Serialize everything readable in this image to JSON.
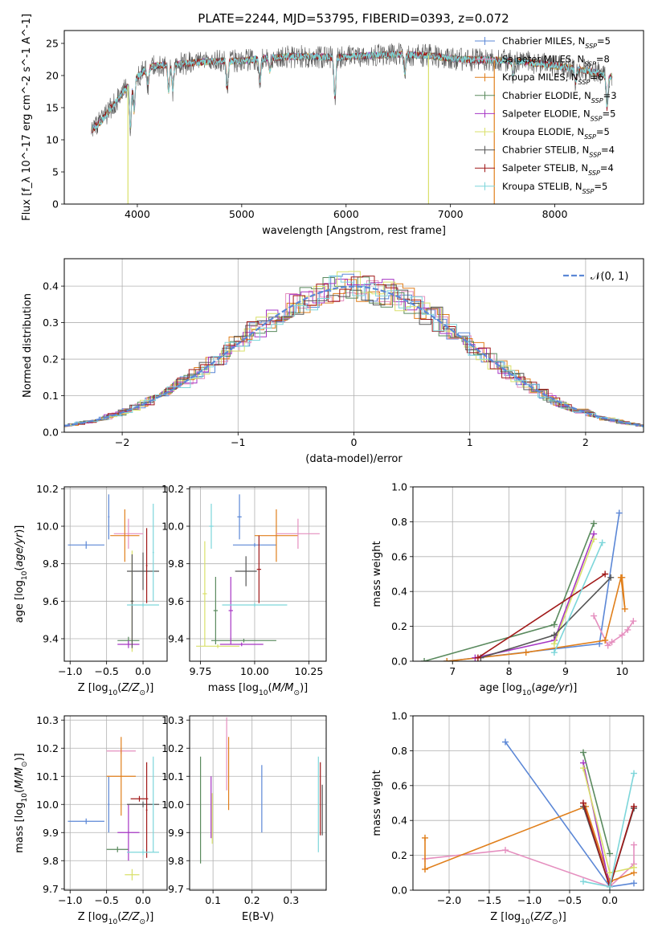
{
  "figure_title": "PLATE=2244, MJD=53795, FIBERID=0393, z=0.072",
  "colors": {
    "chabrier_miles": "#5b87d6",
    "salpeter_miles": "#e58fbf",
    "kroupa_miles": "#e07f1b",
    "chabrier_elodie": "#5a8a5e",
    "salpeter_elodie": "#a636c4",
    "kroupa_elodie": "#d9e06a",
    "chabrier_stelib": "#555555",
    "salpeter_stelib": "#a01818",
    "kroupa_stelib": "#7dd6da",
    "gaussian": "#5b87d6",
    "grid": "#b0b0b0"
  },
  "chart_data": [
    {
      "id": "spectrum",
      "type": "line",
      "title": "PLATE=2244, MJD=53795, FIBERID=0393, z=0.072",
      "xlabel": "wavelength [Angstrom, rest frame]",
      "ylabel": "Flux [f_λ 10^-17 erg cm^-2 s^-1 A^-1]",
      "xlim": [
        3300,
        8850
      ],
      "ylim": [
        0,
        27
      ],
      "xticks": [
        4000,
        5000,
        6000,
        7000,
        8000
      ],
      "yticks": [
        0,
        5,
        10,
        15,
        20,
        25
      ],
      "grid": false,
      "legend_position": "top-right",
      "legend": [
        {
          "label": "Chabrier MILES, N",
          "sub": "SSP",
          "tail": "=5"
        },
        {
          "label": "Salpeter MILES, N",
          "sub": "SSP",
          "tail": "=8"
        },
        {
          "label": "Kroupa MILES, N",
          "sub": "SSP",
          "tail": "=6"
        },
        {
          "label": "Chabrier ELODIE, N",
          "sub": "SSP",
          "tail": "=3"
        },
        {
          "label": "Salpeter ELODIE, N",
          "sub": "SSP",
          "tail": "=5"
        },
        {
          "label": "Kroupa ELODIE, N",
          "sub": "SSP",
          "tail": "=5"
        },
        {
          "label": "Chabrier STELIB, N",
          "sub": "SSP",
          "tail": "=4"
        },
        {
          "label": "Salpeter STELIB, N",
          "sub": "SSP",
          "tail": "=4"
        },
        {
          "label": "Kroupa STELIB, N",
          "sub": "SSP",
          "tail": "=5"
        }
      ],
      "continuum": [
        [
          3560,
          11.5
        ],
        [
          3650,
          12.8
        ],
        [
          3750,
          15
        ],
        [
          3850,
          17
        ],
        [
          3950,
          19.2
        ],
        [
          4050,
          20.5
        ],
        [
          4150,
          21.5
        ],
        [
          4400,
          21.8
        ],
        [
          4700,
          22.2
        ],
        [
          5000,
          22.3
        ],
        [
          5300,
          22.8
        ],
        [
          5600,
          23
        ],
        [
          5900,
          22.8
        ],
        [
          6200,
          23.1
        ],
        [
          6500,
          23.3
        ],
        [
          6800,
          23.1
        ],
        [
          7100,
          22.5
        ],
        [
          7400,
          22.4
        ],
        [
          7700,
          22.2
        ],
        [
          8000,
          21.5
        ],
        [
          8300,
          20.8
        ],
        [
          8550,
          19.8
        ]
      ],
      "absorption": [
        [
          3934,
          7
        ],
        [
          3969,
          5
        ],
        [
          4101,
          2.5
        ],
        [
          4300,
          4
        ],
        [
          4340,
          4
        ],
        [
          4861,
          4
        ],
        [
          5175,
          3.5
        ],
        [
          5270,
          2
        ],
        [
          5893,
          6
        ],
        [
          6563,
          3
        ],
        [
          7600,
          2
        ],
        [
          8200,
          2
        ],
        [
          8500,
          5
        ]
      ],
      "spikes": [
        [
          3910,
          0
        ],
        [
          6790,
          0
        ],
        [
          7420,
          0
        ]
      ]
    },
    {
      "id": "residuals",
      "type": "bar",
      "xlabel": "(data-model)/error",
      "ylabel": "Normed distribution",
      "xlim": [
        -2.5,
        2.5
      ],
      "ylim": [
        0,
        0.475
      ],
      "xticks": [
        -2,
        -1,
        0,
        1,
        2
      ],
      "yticks": [
        0.0,
        0.1,
        0.2,
        0.3,
        0.4
      ],
      "grid": true,
      "legend_position": "top-right",
      "legend": [
        "𝒩(0, 1)"
      ],
      "bin_width": 0.1,
      "gaussian": {
        "mean": 0,
        "sigma": 1
      }
    },
    {
      "id": "z_age",
      "type": "scatter",
      "xlabel": "Z [log10(Z/Z☉)]",
      "ylabel": "age [log10(age/yr)]",
      "xlim": [
        -1.08,
        0.33
      ],
      "ylim": [
        9.28,
        10.21
      ],
      "xticks": [
        -1.0,
        -0.5,
        0.0
      ],
      "yticks": [
        9.4,
        9.6,
        9.8,
        10.0,
        10.2
      ],
      "grid": true,
      "points": [
        {
          "model": "chabrier_miles",
          "x": -0.78,
          "y": 9.9,
          "xerr": 0.25,
          "yerr": 0.02
        },
        {
          "model": "chabrier_miles",
          "x": -0.47,
          "y": 10.05,
          "xerr": 0.01,
          "yerr": 0.12
        },
        {
          "model": "salpeter_miles",
          "x": -0.2,
          "y": 9.96,
          "xerr": 0.2,
          "yerr": 0.08
        },
        {
          "model": "kroupa_miles",
          "x": -0.25,
          "y": 9.95,
          "xerr": 0.2,
          "yerr": 0.14
        },
        {
          "model": "chabrier_elodie",
          "x": -0.2,
          "y": 9.39,
          "xerr": 0.15,
          "yerr": 0.02
        },
        {
          "model": "salpeter_elodie",
          "x": -0.2,
          "y": 9.37,
          "xerr": 0.15,
          "yerr": 0.02
        },
        {
          "model": "kroupa_elodie",
          "x": -0.15,
          "y": 9.6,
          "xerr": 0.02,
          "yerr": 0.27
        },
        {
          "model": "chabrier_stelib",
          "x": -0.15,
          "y": 9.6,
          "xerr": 0.02,
          "yerr": 0.25
        },
        {
          "model": "chabrier_stelib",
          "x": 0.0,
          "y": 9.76,
          "xerr": 0.22,
          "yerr": 0.1
        },
        {
          "model": "salpeter_stelib",
          "x": 0.05,
          "y": 9.79,
          "xerr": 0.01,
          "yerr": 0.2
        },
        {
          "model": "kroupa_stelib",
          "x": 0.0,
          "y": 9.58,
          "xerr": 0.22,
          "yerr": 0.01
        },
        {
          "model": "kroupa_stelib",
          "x": 0.14,
          "y": 9.86,
          "xerr": 0.01,
          "yerr": 0.26
        }
      ]
    },
    {
      "id": "mass_age",
      "type": "scatter",
      "xlabel": "mass [log10(M/M☉)]",
      "ylabel": "",
      "xlim": [
        9.7,
        10.33
      ],
      "ylim": [
        9.28,
        10.21
      ],
      "xticks": [
        9.75,
        10.0,
        10.25
      ],
      "xticklabels": [
        "9.75",
        "10.00",
        "10.25"
      ],
      "yticks": [
        9.4,
        9.6,
        9.8,
        10.0,
        10.2
      ],
      "grid": true,
      "points": [
        {
          "model": "chabrier_miles",
          "x": 10.0,
          "y": 9.9,
          "xerr": 0.1,
          "yerr": 0.01
        },
        {
          "model": "chabrier_miles",
          "x": 9.93,
          "y": 10.05,
          "xerr": 0.01,
          "yerr": 0.12
        },
        {
          "model": "kroupa_miles",
          "x": 10.1,
          "y": 9.95,
          "xerr": 0.1,
          "yerr": 0.14
        },
        {
          "model": "salpeter_miles",
          "x": 10.2,
          "y": 9.96,
          "xerr": 0.1,
          "yerr": 0.08
        },
        {
          "model": "kroupa_stelib",
          "x": 9.8,
          "y": 10.0,
          "xerr": 0.01,
          "yerr": 0.12
        },
        {
          "model": "kroupa_elodie",
          "x": 9.77,
          "y": 9.64,
          "xerr": 0.01,
          "yerr": 0.28
        },
        {
          "model": "kroupa_elodie",
          "x": 9.83,
          "y": 9.36,
          "xerr": 0.1,
          "yerr": 0.01
        },
        {
          "model": "chabrier_elodie",
          "x": 9.82,
          "y": 9.55,
          "xerr": 0.01,
          "yerr": 0.18
        },
        {
          "model": "chabrier_elodie",
          "x": 9.95,
          "y": 9.39,
          "xerr": 0.15,
          "yerr": 0.01
        },
        {
          "model": "salpeter_elodie",
          "x": 9.89,
          "y": 9.55,
          "xerr": 0.01,
          "yerr": 0.18
        },
        {
          "model": "salpeter_elodie",
          "x": 9.94,
          "y": 9.37,
          "xerr": 0.1,
          "yerr": 0.01
        },
        {
          "model": "chabrier_stelib",
          "x": 9.96,
          "y": 9.76,
          "xerr": 0.05,
          "yerr": 0.08
        },
        {
          "model": "salpeter_stelib",
          "x": 10.02,
          "y": 9.77,
          "xerr": 0.01,
          "yerr": 0.18
        },
        {
          "model": "kroupa_stelib",
          "x": 10.0,
          "y": 9.58,
          "xerr": 0.15,
          "yerr": 0.01
        }
      ]
    },
    {
      "id": "age_weight",
      "type": "line",
      "xlabel": "age [log10(age/yr)]",
      "ylabel": "mass weight",
      "xlim": [
        6.3,
        10.38
      ],
      "ylim": [
        0,
        1.0
      ],
      "xticks": [
        7,
        8,
        9,
        10
      ],
      "yticks": [
        0.0,
        0.2,
        0.4,
        0.6,
        0.8,
        1.0
      ],
      "grid": true,
      "series": [
        {
          "model": "chabrier_miles",
          "x": [
            6.9,
            9.6,
            9.95
          ],
          "y": [
            0.0,
            0.1,
            0.85
          ]
        },
        {
          "model": "salpeter_miles",
          "x": [
            9.5,
            9.75,
            9.82,
            10.0,
            10.1,
            10.2
          ],
          "y": [
            0.26,
            0.09,
            0.11,
            0.15,
            0.18,
            0.23
          ]
        },
        {
          "model": "kroupa_miles",
          "x": [
            6.9,
            8.3,
            9.7,
            9.98,
            10.05,
            10.0
          ],
          "y": [
            0.0,
            0.05,
            0.12,
            0.48,
            0.3,
            0.48
          ]
        },
        {
          "model": "chabrier_elodie",
          "x": [
            6.5,
            8.8,
            9.5
          ],
          "y": [
            0.0,
            0.21,
            0.79
          ]
        },
        {
          "model": "salpeter_elodie",
          "x": [
            7.4,
            8.8,
            9.5
          ],
          "y": [
            0.02,
            0.12,
            0.73
          ]
        },
        {
          "model": "kroupa_elodie",
          "x": [
            8.8,
            9.5
          ],
          "y": [
            0.1,
            0.7
          ]
        },
        {
          "model": "chabrier_stelib",
          "x": [
            7.5,
            8.8,
            9.8
          ],
          "y": [
            0.02,
            0.15,
            0.48
          ]
        },
        {
          "model": "salpeter_stelib",
          "x": [
            7.45,
            9.7
          ],
          "y": [
            0.02,
            0.5
          ]
        },
        {
          "model": "kroupa_stelib",
          "x": [
            8.8,
            9.65
          ],
          "y": [
            0.05,
            0.68
          ]
        }
      ]
    },
    {
      "id": "z_mass",
      "type": "scatter",
      "xlabel": "Z [log10(Z/Z☉)]",
      "ylabel": "mass [log10(M/M☉)]",
      "xlim": [
        -1.08,
        0.33
      ],
      "ylim": [
        9.695,
        10.315
      ],
      "xticks": [
        -1.0,
        -0.5,
        0.0
      ],
      "yticks": [
        9.7,
        9.8,
        9.9,
        10.0,
        10.1,
        10.2,
        10.3
      ],
      "grid": true,
      "points": [
        {
          "model": "chabrier_miles",
          "x": -0.78,
          "y": 9.94,
          "xerr": 0.25,
          "yerr": 0.01
        },
        {
          "model": "chabrier_miles",
          "x": -0.47,
          "y": 10.0,
          "xerr": 0.01,
          "yerr": 0.1
        },
        {
          "model": "salpeter_miles",
          "x": -0.3,
          "y": 10.19,
          "xerr": 0.2,
          "yerr": 0.01
        },
        {
          "model": "kroupa_miles",
          "x": -0.3,
          "y": 10.1,
          "xerr": 0.2,
          "yerr": 0.14
        },
        {
          "model": "chabrier_elodie",
          "x": -0.35,
          "y": 9.84,
          "xerr": 0.15,
          "yerr": 0.01
        },
        {
          "model": "salpeter_elodie",
          "x": -0.2,
          "y": 9.9,
          "xerr": 0.15,
          "yerr": 0.1
        },
        {
          "model": "kroupa_elodie",
          "x": -0.15,
          "y": 9.75,
          "xerr": 0.1,
          "yerr": 0.02
        },
        {
          "model": "chabrier_stelib",
          "x": 0.0,
          "y": 10.0,
          "xerr": 0.22,
          "yerr": 0.01
        },
        {
          "model": "salpeter_stelib",
          "x": -0.05,
          "y": 10.02,
          "xerr": 0.12,
          "yerr": 0.01
        },
        {
          "model": "salpeter_stelib",
          "x": 0.05,
          "y": 9.98,
          "xerr": 0.01,
          "yerr": 0.17
        },
        {
          "model": "kroupa_stelib",
          "x": 0.0,
          "y": 9.83,
          "xerr": 0.22,
          "yerr": 0.01
        },
        {
          "model": "kroupa_stelib",
          "x": 0.14,
          "y": 10.0,
          "xerr": 0.01,
          "yerr": 0.17
        }
      ]
    },
    {
      "id": "ebv_mass",
      "type": "scatter",
      "xlabel": "E(B-V)",
      "ylabel": "",
      "xlim": [
        0.04,
        0.39
      ],
      "ylim": [
        9.695,
        10.315
      ],
      "xticks": [
        0.1,
        0.2,
        0.3
      ],
      "yticks": [
        9.7,
        9.8,
        9.9,
        10.0,
        10.1,
        10.2,
        10.3
      ],
      "grid": true,
      "points": [
        {
          "model": "chabrier_elodie",
          "x": 0.068,
          "y": 9.98,
          "xerr": 0.0,
          "yerr": 0.19
        },
        {
          "model": "salpeter_elodie",
          "x": 0.095,
          "y": 9.99,
          "xerr": 0.0,
          "yerr": 0.11
        },
        {
          "model": "kroupa_elodie",
          "x": 0.098,
          "y": 9.95,
          "xerr": 0.0,
          "yerr": 0.09
        },
        {
          "model": "salpeter_miles",
          "x": 0.135,
          "y": 10.18,
          "xerr": 0.0,
          "yerr": 0.13
        },
        {
          "model": "kroupa_miles",
          "x": 0.14,
          "y": 10.11,
          "xerr": 0.0,
          "yerr": 0.13
        },
        {
          "model": "chabrier_miles",
          "x": 0.225,
          "y": 10.02,
          "xerr": 0.0,
          "yerr": 0.12
        },
        {
          "model": "kroupa_stelib",
          "x": 0.37,
          "y": 10.0,
          "xerr": 0.0,
          "yerr": 0.17
        },
        {
          "model": "salpeter_stelib",
          "x": 0.375,
          "y": 10.02,
          "xerr": 0.0,
          "yerr": 0.13
        },
        {
          "model": "chabrier_stelib",
          "x": 0.38,
          "y": 9.98,
          "xerr": 0.0,
          "yerr": 0.09
        }
      ]
    },
    {
      "id": "z_weight",
      "type": "line",
      "xlabel": "Z [log10(Z/Z☉)]",
      "ylabel": "mass weight",
      "xlim": [
        -2.45,
        0.42
      ],
      "ylim": [
        0,
        1.0
      ],
      "xticks": [
        -2.0,
        -1.5,
        -1.0,
        -0.5,
        0.0
      ],
      "yticks": [
        0.0,
        0.2,
        0.4,
        0.6,
        0.8,
        1.0
      ],
      "grid": true,
      "series": [
        {
          "model": "chabrier_miles",
          "x": [
            -1.3,
            0.0,
            0.3
          ],
          "y": [
            0.85,
            0.02,
            0.04
          ]
        },
        {
          "model": "salpeter_miles",
          "x": [
            -2.3,
            -1.3,
            0.0,
            0.3,
            0.3
          ],
          "y": [
            0.18,
            0.23,
            0.02,
            0.15,
            0.26
          ]
        },
        {
          "model": "kroupa_miles",
          "x": [
            -2.3,
            -2.3,
            -0.3,
            0.0,
            0.3
          ],
          "y": [
            0.3,
            0.12,
            0.48,
            0.05,
            0.1
          ]
        },
        {
          "model": "chabrier_elodie",
          "x": [
            -0.33,
            0.0
          ],
          "y": [
            0.79,
            0.21
          ]
        },
        {
          "model": "salpeter_elodie",
          "x": [
            -0.33,
            0.0
          ],
          "y": [
            0.73,
            0.02
          ]
        },
        {
          "model": "kroupa_elodie",
          "x": [
            -0.33,
            0.0,
            0.3
          ],
          "y": [
            0.7,
            0.1,
            0.13
          ]
        },
        {
          "model": "chabrier_stelib",
          "x": [
            -0.33,
            0.0,
            0.3
          ],
          "y": [
            0.48,
            0.02,
            0.47
          ]
        },
        {
          "model": "salpeter_stelib",
          "x": [
            -0.33,
            0.0,
            0.3
          ],
          "y": [
            0.5,
            0.02,
            0.48
          ]
        },
        {
          "model": "kroupa_stelib",
          "x": [
            -0.33,
            0.0,
            0.3
          ],
          "y": [
            0.05,
            0.02,
            0.67
          ]
        }
      ]
    }
  ]
}
